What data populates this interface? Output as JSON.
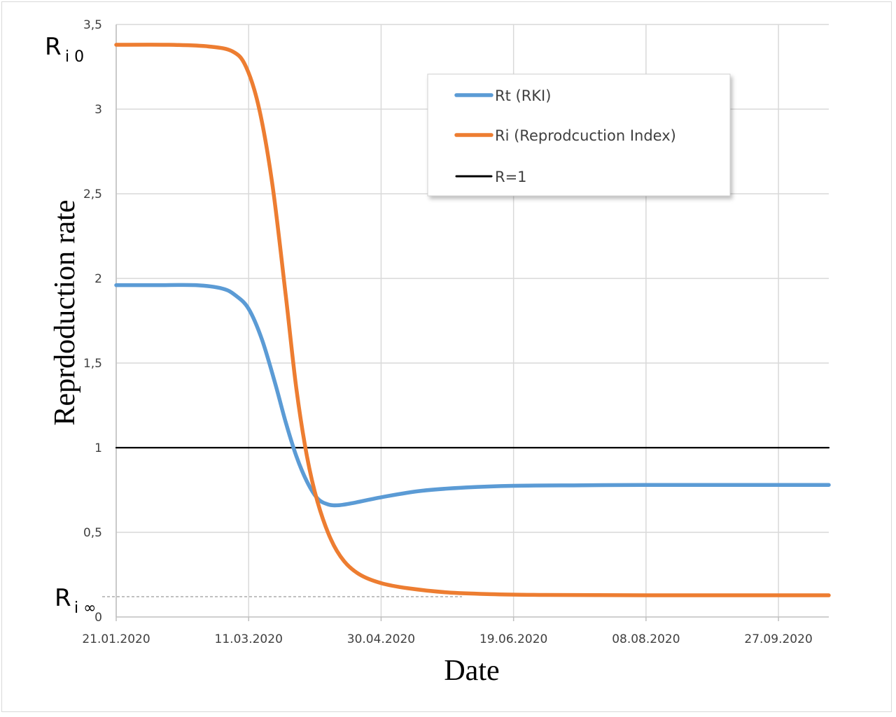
{
  "chart_data": {
    "type": "line",
    "xlabel": "Date",
    "ylabel": "Reprdoduction rate",
    "ylim": [
      0,
      3.5
    ],
    "y_ticks": [
      "0",
      "0,5",
      "1",
      "1,5",
      "2",
      "2,5",
      "3",
      "3,5"
    ],
    "x_ticks": [
      "21.01.2020",
      "11.03.2020",
      "30.04.2020",
      "19.06.2020",
      "08.08.2020",
      "27.09.2020"
    ],
    "grid": true,
    "legend_position": "top-right",
    "annotations": {
      "ri0_main": "R",
      "ri0_sub": "i 0",
      "riinf_main": "R",
      "riinf_sub": "i ∞"
    },
    "series": [
      {
        "name": "Rt (RKI)",
        "color": "#5b9bd5",
        "points": [
          [
            "21.01.2020",
            1.96
          ],
          [
            "05.02.2020",
            1.96
          ],
          [
            "20.02.2020",
            1.96
          ],
          [
            "01.03.2020",
            1.94
          ],
          [
            "06.03.2020",
            1.9
          ],
          [
            "11.03.2020",
            1.82
          ],
          [
            "16.03.2020",
            1.64
          ],
          [
            "21.03.2020",
            1.38
          ],
          [
            "25.03.2020",
            1.15
          ],
          [
            "29.03.2020",
            0.95
          ],
          [
            "02.04.2020",
            0.8
          ],
          [
            "06.04.2020",
            0.7
          ],
          [
            "10.04.2020",
            0.665
          ],
          [
            "14.04.2020",
            0.66
          ],
          [
            "20.04.2020",
            0.675
          ],
          [
            "01.05.2020",
            0.71
          ],
          [
            "15.05.2020",
            0.745
          ],
          [
            "01.06.2020",
            0.765
          ],
          [
            "19.06.2020",
            0.775
          ],
          [
            "15.07.2020",
            0.778
          ],
          [
            "08.08.2020",
            0.78
          ],
          [
            "27.09.2020",
            0.78
          ],
          [
            "16.10.2020",
            0.78
          ]
        ]
      },
      {
        "name": "Ri (Reprodcuction Index)",
        "color": "#ed7d31",
        "points": [
          [
            "21.01.2020",
            3.38
          ],
          [
            "10.02.2020",
            3.38
          ],
          [
            "25.02.2020",
            3.37
          ],
          [
            "05.03.2020",
            3.34
          ],
          [
            "10.03.2020",
            3.25
          ],
          [
            "15.03.2020",
            3.0
          ],
          [
            "20.03.2020",
            2.55
          ],
          [
            "25.03.2020",
            1.9
          ],
          [
            "29.03.2020",
            1.35
          ],
          [
            "02.04.2020",
            0.95
          ],
          [
            "06.04.2020",
            0.68
          ],
          [
            "11.04.2020",
            0.46
          ],
          [
            "16.04.2020",
            0.33
          ],
          [
            "22.04.2020",
            0.25
          ],
          [
            "30.04.2020",
            0.2
          ],
          [
            "10.05.2020",
            0.17
          ],
          [
            "25.05.2020",
            0.145
          ],
          [
            "10.06.2020",
            0.135
          ],
          [
            "01.07.2020",
            0.13
          ],
          [
            "08.08.2020",
            0.128
          ],
          [
            "16.10.2020",
            0.128
          ]
        ]
      },
      {
        "name": "R=1",
        "color": "#000000",
        "points": [
          [
            "21.01.2020",
            1
          ],
          [
            "16.10.2020",
            1
          ]
        ]
      }
    ],
    "reference_line": {
      "y": 0.128,
      "color": "#808080"
    }
  }
}
